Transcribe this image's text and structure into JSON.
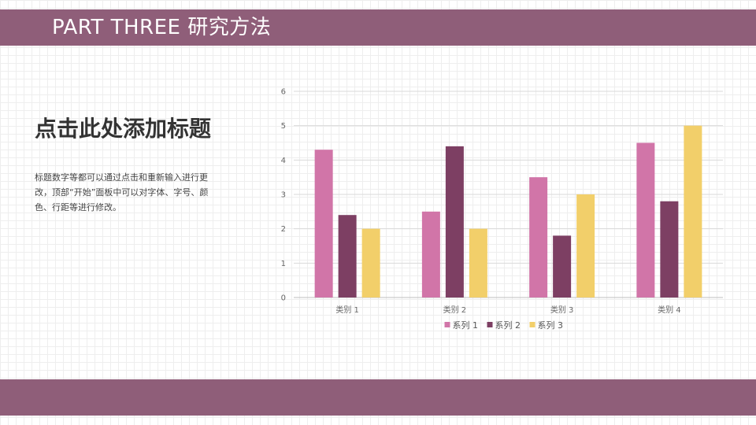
{
  "slide": {
    "header_title": "PART THREE  研究方法",
    "heading": "点击此处添加标题",
    "body": "标题数字等都可以通过点击和重新输入进行更改，顶部“开始”面板中可以对字体、字号、颜色、行距等进行修改。"
  },
  "colors": {
    "band": "#8f5e79",
    "series": [
      "#d175a8",
      "#7d3f63",
      "#f2cf6a"
    ]
  },
  "chart_data": {
    "type": "bar",
    "categories": [
      "类别 1",
      "类别 2",
      "类别 3",
      "类别 4"
    ],
    "series": [
      {
        "name": "系列 1",
        "values": [
          4.3,
          2.5,
          3.5,
          4.5
        ]
      },
      {
        "name": "系列 2",
        "values": [
          2.4,
          4.4,
          1.8,
          2.8
        ]
      },
      {
        "name": "系列 3",
        "values": [
          2.0,
          2.0,
          3.0,
          5.0
        ]
      }
    ],
    "yticks": [
      "0",
      "1",
      "2",
      "3",
      "4",
      "5",
      "6"
    ],
    "ylim": [
      0,
      6
    ],
    "grid": true,
    "legend": "bottom"
  }
}
